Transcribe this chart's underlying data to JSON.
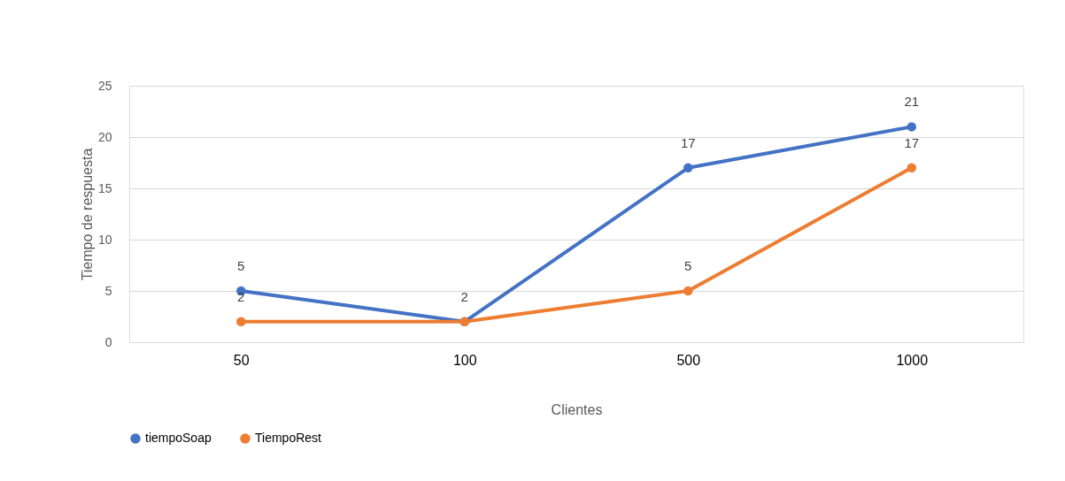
{
  "chart_data": {
    "type": "line",
    "xlabel": "Clientes",
    "ylabel": "Tiempo de respuesta",
    "categories": [
      "50",
      "100",
      "500",
      "1000"
    ],
    "series": [
      {
        "name": "tiempoSoap",
        "color": "#4472c4",
        "values": [
          5,
          2,
          17,
          21
        ],
        "value_labels": [
          "5",
          "2",
          "17",
          "21"
        ]
      },
      {
        "name": "TiempoRest",
        "color": "#ed7d31",
        "values": [
          2,
          2,
          5,
          17
        ],
        "value_labels": [
          "2",
          null,
          "5",
          "17"
        ]
      }
    ],
    "ylim": [
      0,
      25
    ],
    "yticks": [
      0,
      5,
      10,
      15,
      20,
      25
    ],
    "grid": "y",
    "legend": "bottom",
    "marker": "circle",
    "line_style": "solid"
  }
}
